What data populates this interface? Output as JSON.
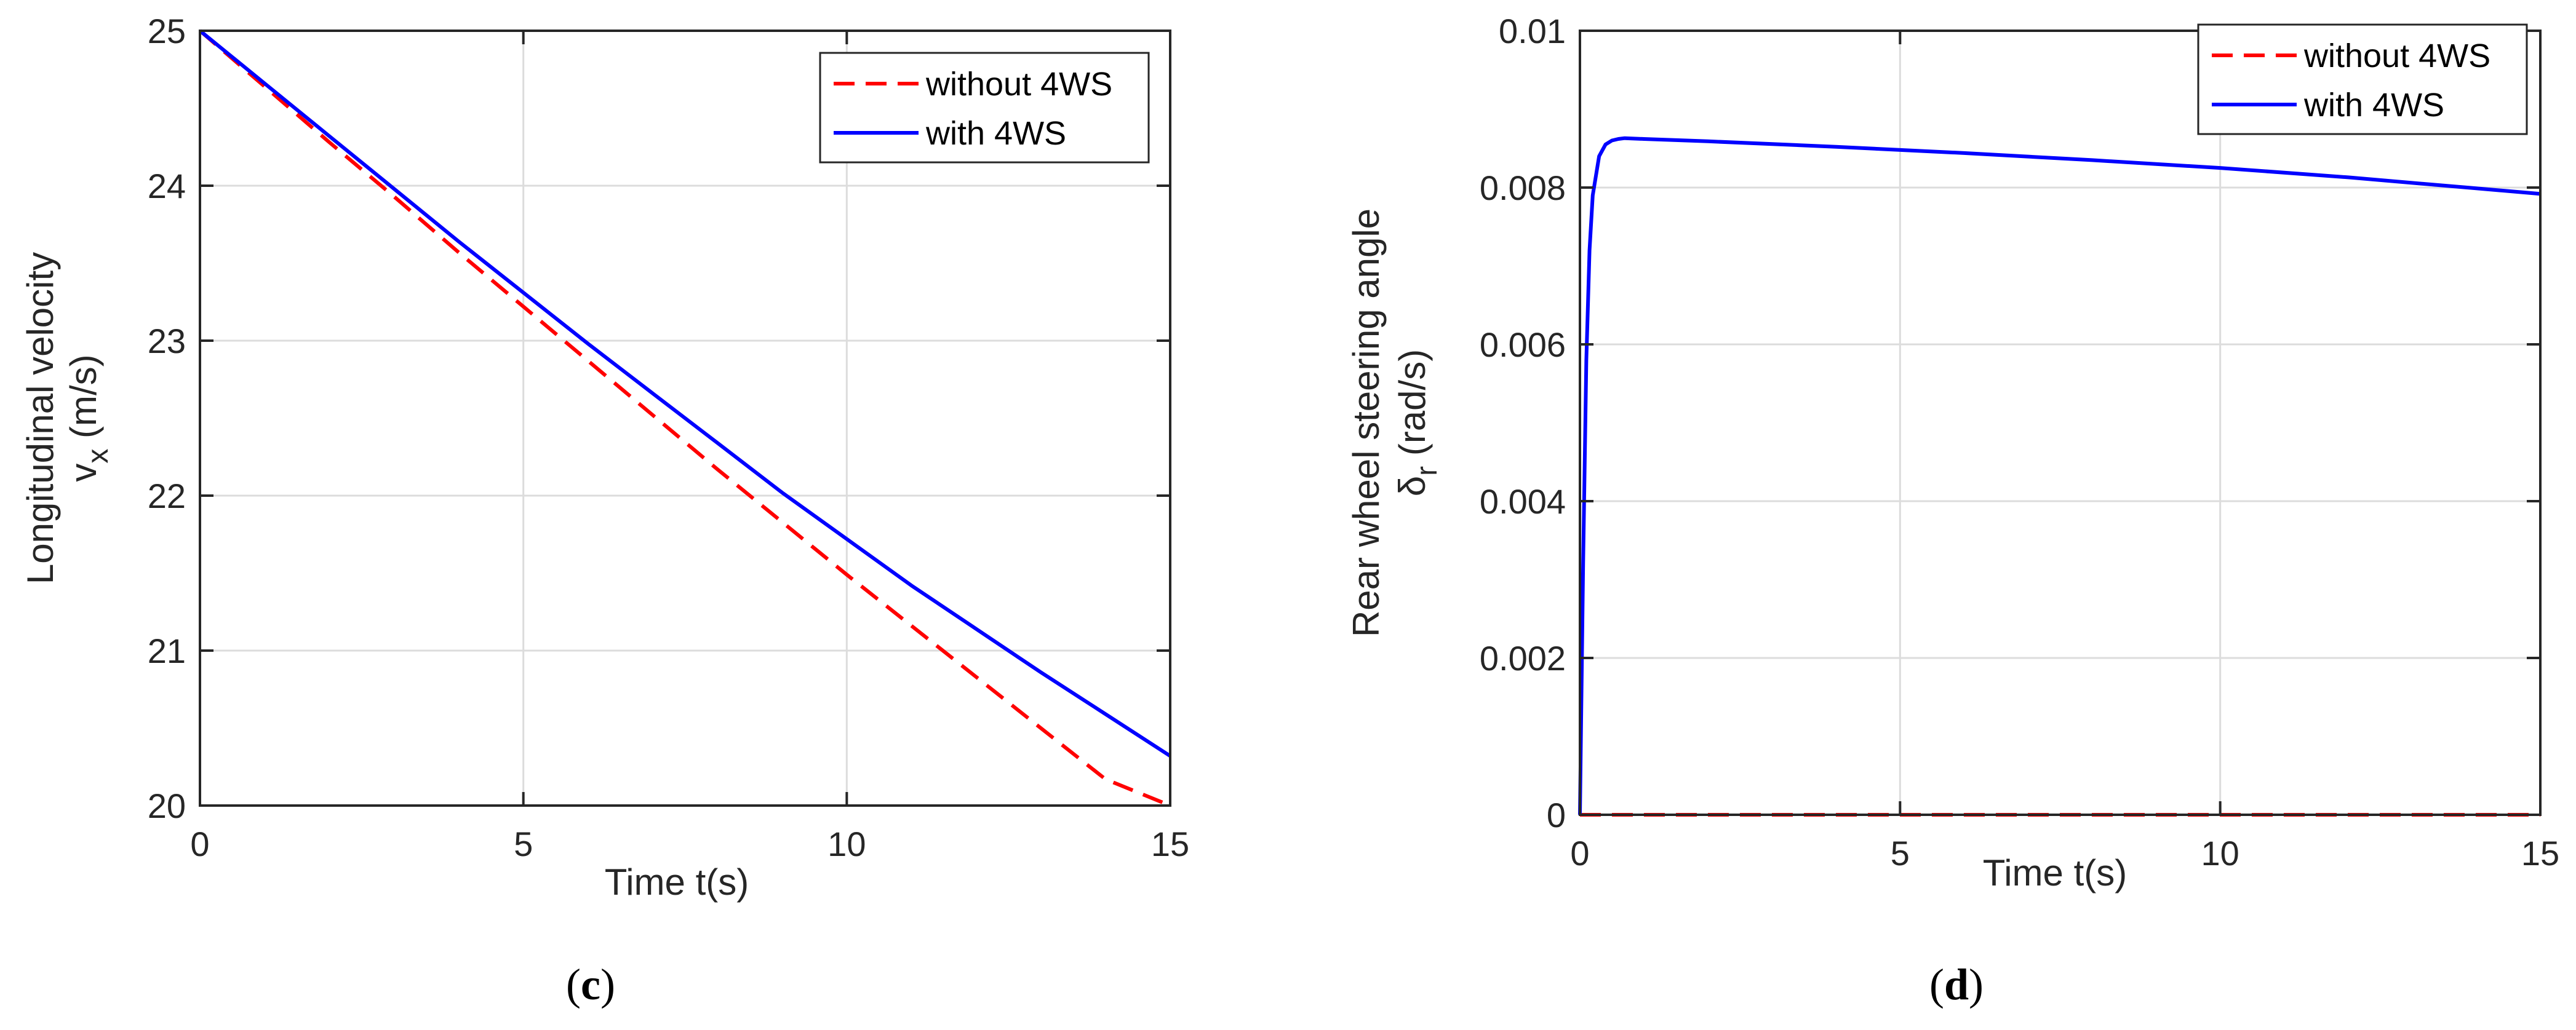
{
  "chart_data": [
    {
      "type": "line",
      "panel_label": {
        "open": "(",
        "letter": "c",
        "close": ")"
      },
      "xlabel": "Time t(s)",
      "ylabel_line1": "Longitudinal velocity",
      "ylabel_symbol": "v",
      "ylabel_sub": "x",
      "ylabel_unit": " (m/s)",
      "xlim": [
        0,
        15
      ],
      "ylim": [
        20,
        25
      ],
      "xticks": [
        0,
        5,
        10,
        15
      ],
      "yticks": [
        20,
        21,
        22,
        23,
        24,
        25
      ],
      "ytick_labels": [
        "20",
        "21",
        "22",
        "23",
        "24",
        "25"
      ],
      "grid": true,
      "legend_position": "top-right",
      "series": [
        {
          "name": "without 4WS",
          "color": "#ff0000",
          "style": "dashed",
          "x": [
            0,
            1,
            2,
            3,
            4,
            5,
            6,
            7,
            8,
            9,
            10,
            11,
            12,
            13,
            14,
            15
          ],
          "y": [
            25.0,
            24.64,
            24.28,
            23.93,
            23.57,
            23.22,
            22.87,
            22.52,
            22.17,
            21.83,
            21.49,
            21.16,
            20.83,
            20.5,
            20.17,
            20.0
          ]
        },
        {
          "name": "with 4WS",
          "color": "#0000ff",
          "style": "solid",
          "x": [
            0,
            1,
            2,
            3,
            4,
            5,
            6,
            7,
            8,
            9,
            10,
            11,
            12,
            13,
            14,
            15
          ],
          "y": [
            25.0,
            24.66,
            24.32,
            23.98,
            23.64,
            23.31,
            22.98,
            22.66,
            22.34,
            22.02,
            21.72,
            21.42,
            21.14,
            20.86,
            20.59,
            20.32
          ]
        }
      ]
    },
    {
      "type": "line",
      "panel_label": {
        "open": "(",
        "letter": "d",
        "close": ")"
      },
      "xlabel": "Time t(s)",
      "ylabel_line1": "Rear wheel steering angle",
      "ylabel_symbol": "δ",
      "ylabel_sub": "r",
      "ylabel_unit": " (rad/s)",
      "xlim": [
        0,
        15
      ],
      "ylim": [
        0,
        0.01
      ],
      "xticks": [
        0,
        5,
        10,
        15
      ],
      "yticks": [
        0,
        0.002,
        0.004,
        0.006,
        0.008,
        0.01
      ],
      "ytick_labels": [
        "0",
        "0.002",
        "0.004",
        "0.006",
        "0.008",
        "0.01"
      ],
      "grid": true,
      "legend_position": "top-right",
      "series": [
        {
          "name": "without 4WS",
          "color": "#ff0000",
          "style": "dashed",
          "x": [
            0,
            15
          ],
          "y": [
            0,
            0
          ]
        },
        {
          "name": "with 4WS",
          "color": "#0000ff",
          "style": "solid",
          "x": [
            0,
            0.05,
            0.1,
            0.15,
            0.2,
            0.3,
            0.4,
            0.5,
            0.6,
            0.7,
            1,
            2,
            4,
            6,
            8,
            10,
            12,
            14,
            15
          ],
          "y": [
            0,
            0.0032,
            0.0058,
            0.0072,
            0.0079,
            0.0084,
            0.00855,
            0.0086,
            0.00862,
            0.00863,
            0.00862,
            0.00859,
            0.00852,
            0.00844,
            0.00835,
            0.00825,
            0.00813,
            0.00799,
            0.00792
          ]
        }
      ]
    }
  ]
}
